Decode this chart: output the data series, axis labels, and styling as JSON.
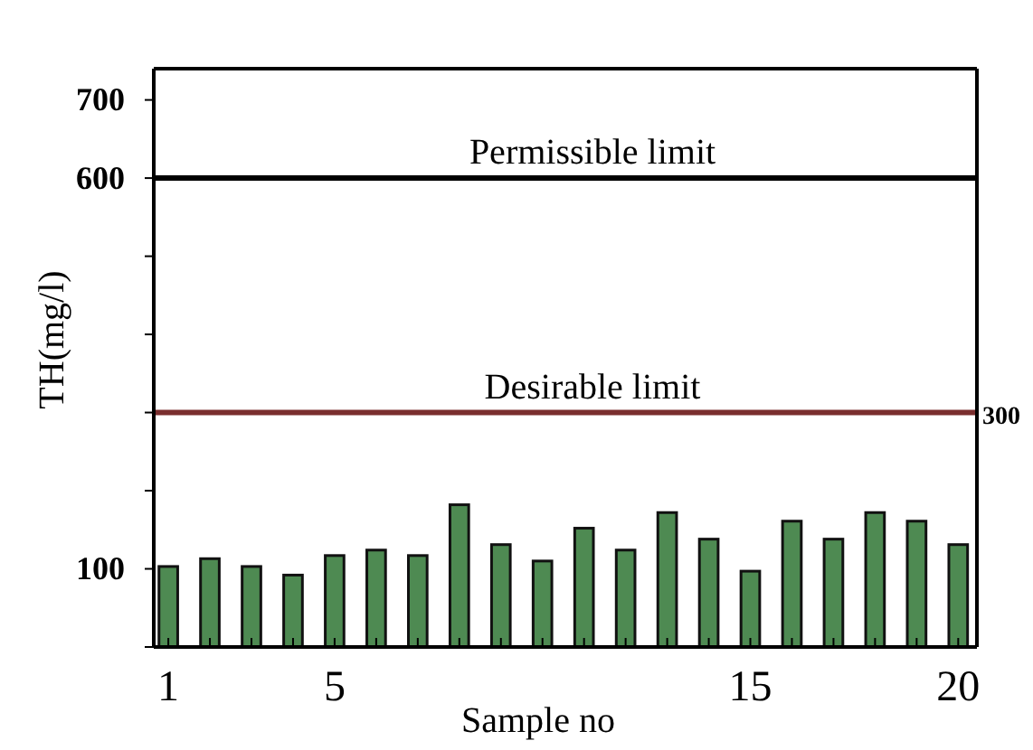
{
  "chart_data": {
    "type": "bar",
    "xlabel": "Sample no",
    "ylabel": "TH(mg/l)",
    "x": [
      1,
      2,
      3,
      4,
      5,
      6,
      7,
      8,
      9,
      10,
      11,
      12,
      13,
      14,
      15,
      16,
      17,
      18,
      19,
      20
    ],
    "values": [
      103,
      113,
      103,
      92,
      117,
      124,
      117,
      182,
      131,
      110,
      152,
      124,
      172,
      138,
      97,
      161,
      138,
      172,
      161,
      131
    ],
    "color": "#4e8a52",
    "xlim": [
      0.65,
      20.45
    ],
    "xticks": [
      1,
      {
        "value": 2,
        "label": null
      },
      {
        "value": 3,
        "label": null
      },
      {
        "value": 4,
        "label": null
      },
      5,
      {
        "value": 6,
        "label": null
      },
      {
        "value": 7,
        "label": null
      },
      {
        "value": 8,
        "label": null
      },
      {
        "value": 9,
        "label": null
      },
      {
        "value": 10,
        "label": null
      },
      {
        "value": 11,
        "label": null
      },
      {
        "value": 12,
        "label": null
      },
      {
        "value": 13,
        "label": null
      },
      {
        "value": 14,
        "label": null
      },
      15,
      {
        "value": 16,
        "label": null
      },
      {
        "value": 17,
        "label": null
      },
      {
        "value": 18,
        "label": null
      },
      {
        "value": 19,
        "label": null
      },
      20
    ],
    "ylim": [
      0,
      740
    ],
    "yticks": [
      {
        "value": 0,
        "label": null
      },
      100,
      {
        "value": 200,
        "label": null
      },
      {
        "value": 300,
        "label": null
      },
      {
        "value": 400,
        "label": null
      },
      {
        "value": 500,
        "label": null
      },
      600,
      700
    ],
    "ref_lines": [
      {
        "axis": "y",
        "value": 600,
        "label": "Permissible limit",
        "color": "#000000"
      },
      {
        "axis": "y",
        "value": 300,
        "label": "Desirable limit",
        "color": "#7a2e2e"
      }
    ],
    "annotations": [
      {
        "text": "300",
        "x": 20.45,
        "y": 300
      }
    ],
    "grid": false
  }
}
